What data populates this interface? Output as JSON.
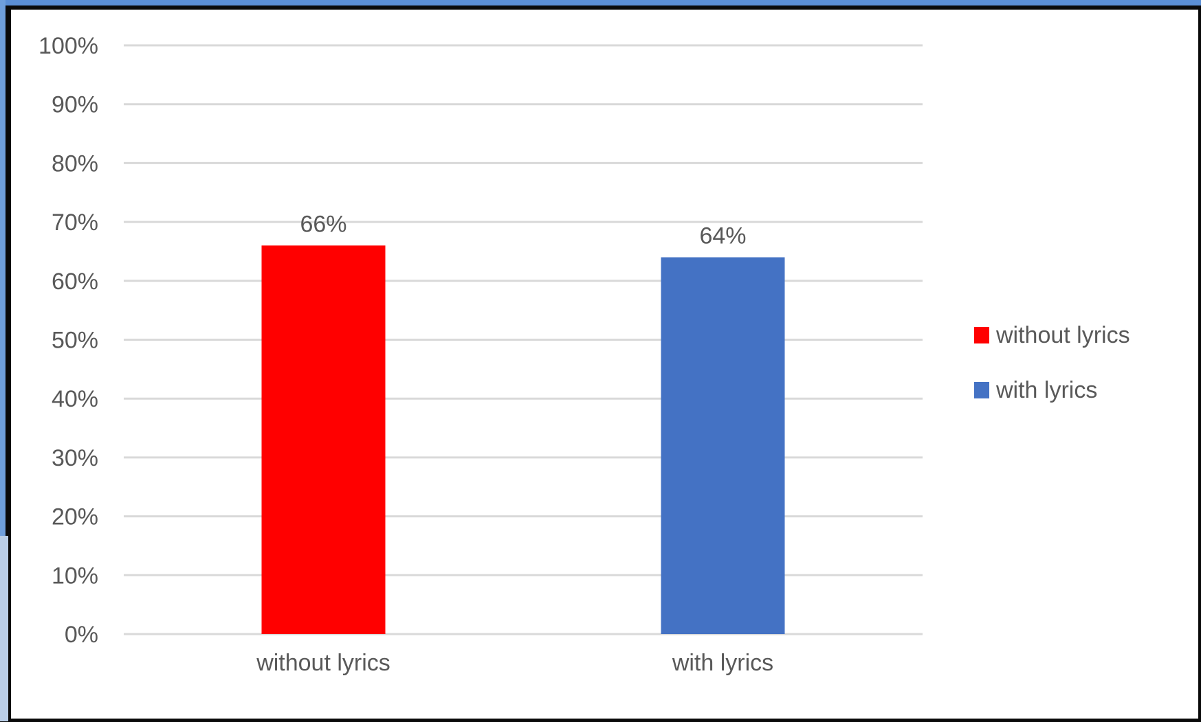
{
  "chart_data": {
    "type": "bar",
    "title": "",
    "xlabel": "",
    "ylabel": "",
    "categories": [
      "without lyrics",
      "with lyrics"
    ],
    "values": [
      66,
      64
    ],
    "value_labels": [
      "66%",
      "64%"
    ],
    "bar_colors": [
      "#ff0000",
      "#4472c4"
    ],
    "ylim": [
      0,
      100
    ],
    "yticks": [
      0,
      10,
      20,
      30,
      40,
      50,
      60,
      70,
      80,
      90,
      100
    ],
    "ytick_labels": [
      "0%",
      "10%",
      "20%",
      "30%",
      "40%",
      "50%",
      "60%",
      "70%",
      "80%",
      "90%",
      "100%"
    ],
    "grid": true,
    "legend": {
      "placement": "right",
      "entries": [
        {
          "label": "without lyrics",
          "color": "#ff0000"
        },
        {
          "label": "with lyrics",
          "color": "#4472c4"
        }
      ]
    }
  },
  "colors": {
    "gridline": "#d9d9d9",
    "text": "#595959"
  }
}
